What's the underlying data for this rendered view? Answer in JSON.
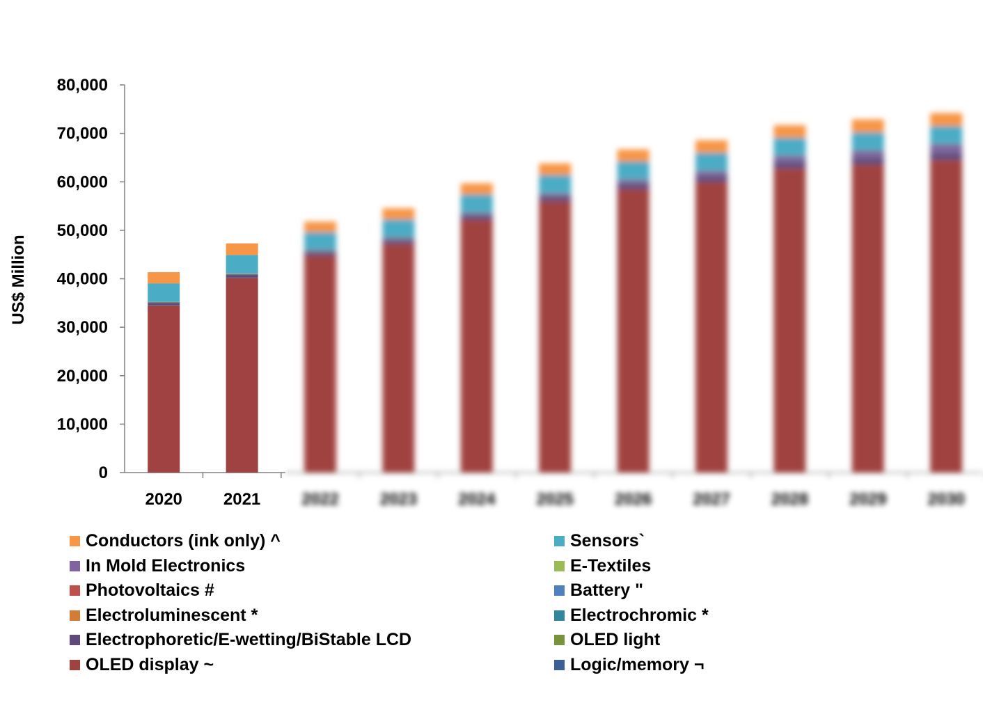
{
  "chart_data": {
    "type": "bar",
    "stacked": true,
    "title": "",
    "xlabel": "",
    "ylabel": "US$ Million",
    "ylim": [
      0,
      80000
    ],
    "yticks": [
      "0",
      "10,000",
      "20,000",
      "30,000",
      "40,000",
      "50,000",
      "60,000",
      "70,000",
      "80,000"
    ],
    "yticks_values": [
      0,
      10000,
      20000,
      30000,
      40000,
      50000,
      60000,
      70000,
      80000
    ],
    "categories": [
      "2020",
      "2021",
      "2022",
      "2023",
      "2024",
      "2025",
      "2026",
      "2027",
      "2028",
      "2029",
      "2030"
    ],
    "blurred_categories_from_index": 2,
    "series": [
      {
        "name": "OLED display ~",
        "color": "#a04241",
        "values": [
          34500,
          40200,
          44800,
          47200,
          52200,
          56000,
          58500,
          60000,
          62800,
          63600,
          64500
        ]
      },
      {
        "name": "Logic/memory ¬",
        "color": "#3c5f95",
        "values": [
          100,
          100,
          100,
          100,
          100,
          100,
          100,
          100,
          100,
          100,
          100
        ]
      },
      {
        "name": "Electrophoretic/E-wetting/BiStable LCD",
        "color": "#604a7b",
        "values": [
          400,
          500,
          600,
          650,
          700,
          800,
          900,
          1000,
          1100,
          1200,
          1300
        ]
      },
      {
        "name": "OLED light",
        "color": "#77933c",
        "values": [
          50,
          50,
          50,
          50,
          50,
          50,
          50,
          50,
          50,
          50,
          50
        ]
      },
      {
        "name": "Electroluminescent *",
        "color": "#d27d33",
        "values": [
          20,
          20,
          20,
          20,
          20,
          20,
          20,
          20,
          20,
          20,
          20
        ]
      },
      {
        "name": "Electrochromic *",
        "color": "#31859c",
        "values": [
          30,
          30,
          30,
          30,
          30,
          30,
          30,
          30,
          30,
          30,
          30
        ]
      },
      {
        "name": "Photovoltaics #",
        "color": "#c0504d",
        "values": [
          30,
          30,
          30,
          30,
          30,
          30,
          30,
          30,
          30,
          30,
          30
        ]
      },
      {
        "name": "Battery \"",
        "color": "#4f81bd",
        "values": [
          20,
          20,
          20,
          20,
          20,
          20,
          20,
          20,
          20,
          20,
          20
        ]
      },
      {
        "name": "In Mold Electronics",
        "color": "#8064a2",
        "values": [
          50,
          100,
          300,
          400,
          500,
          600,
          800,
          1000,
          1200,
          1400,
          1700
        ]
      },
      {
        "name": "E-Textiles",
        "color": "#9bbb59",
        "values": [
          50,
          50,
          50,
          50,
          50,
          50,
          50,
          50,
          50,
          50,
          50
        ]
      },
      {
        "name": "Sensors`",
        "color": "#4bacc6",
        "values": [
          3800,
          3800,
          3600,
          3700,
          3700,
          3700,
          3700,
          3700,
          3700,
          3700,
          3700
        ]
      },
      {
        "name": "Conductors (ink only) ^",
        "color": "#f79646",
        "values": [
          2300,
          2400,
          2200,
          2300,
          2300,
          2400,
          2500,
          2600,
          2600,
          2700,
          2700
        ]
      }
    ],
    "legend": {
      "position": "bottom",
      "left_column": [
        "Conductors (ink only) ^",
        "In Mold Electronics",
        "Photovoltaics #",
        "Electroluminescent *",
        "Electrophoretic/E-wetting/BiStable LCD",
        "OLED display ~"
      ],
      "right_column": [
        "Sensors`",
        "E-Textiles",
        "Battery \"",
        "Electrochromic *",
        "OLED light",
        "Logic/memory ¬"
      ]
    },
    "grid": false
  }
}
